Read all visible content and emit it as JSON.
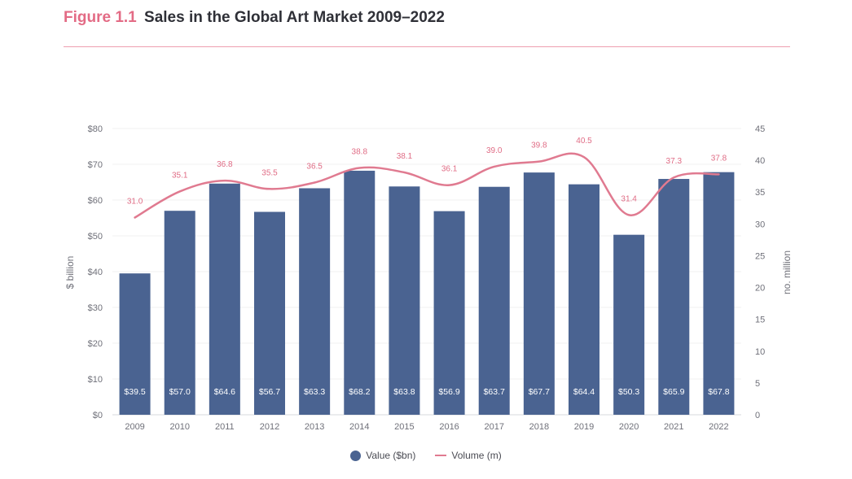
{
  "figure": {
    "number": "Figure 1.1",
    "title": "Sales in the Global Art Market 2009–2022"
  },
  "colors": {
    "bar": "#4a6391",
    "line": "#e07a90",
    "accent": "#e36b85"
  },
  "legend": {
    "value_label": "Value ($bn)",
    "volume_label": "Volume (m)"
  },
  "chart_data": {
    "type": "bar",
    "categories": [
      "2009",
      "2010",
      "2011",
      "2012",
      "2013",
      "2014",
      "2015",
      "2016",
      "2017",
      "2018",
      "2019",
      "2020",
      "2021",
      "2022"
    ],
    "series": [
      {
        "name": "Value ($bn)",
        "type": "bar",
        "axis": "left",
        "values": [
          39.5,
          57.0,
          64.6,
          56.7,
          63.3,
          68.2,
          63.8,
          56.9,
          63.7,
          67.7,
          64.4,
          50.3,
          65.9,
          67.8
        ],
        "labels": [
          "$39.5",
          "$57.0",
          "$64.6",
          "$56.7",
          "$63.3",
          "$68.2",
          "$63.8",
          "$56.9",
          "$63.7",
          "$67.7",
          "$64.4",
          "$50.3",
          "$65.9",
          "$67.8"
        ]
      },
      {
        "name": "Volume (m)",
        "type": "line",
        "axis": "right",
        "values": [
          31.0,
          35.1,
          36.8,
          35.5,
          36.5,
          38.8,
          38.1,
          36.1,
          39.0,
          39.8,
          40.5,
          31.4,
          37.3,
          37.8
        ],
        "labels": [
          "31.0",
          "35.1",
          "36.8",
          "35.5",
          "36.5",
          "38.8",
          "38.1",
          "36.1",
          "39.0",
          "39.8",
          "40.5",
          "31.4",
          "37.3",
          "37.8"
        ]
      }
    ],
    "ylabel": "$ billion",
    "y2label": "no. million",
    "ylim": [
      0,
      80
    ],
    "y2lim": [
      0,
      45
    ],
    "yticks": [
      "$0",
      "$10",
      "$20",
      "$30",
      "$40",
      "$50",
      "$60",
      "$70",
      "$80"
    ],
    "y2ticks": [
      "0",
      "5",
      "10",
      "15",
      "20",
      "25",
      "30",
      "35",
      "40",
      "45"
    ],
    "grid": true,
    "legend_position": "bottom"
  }
}
